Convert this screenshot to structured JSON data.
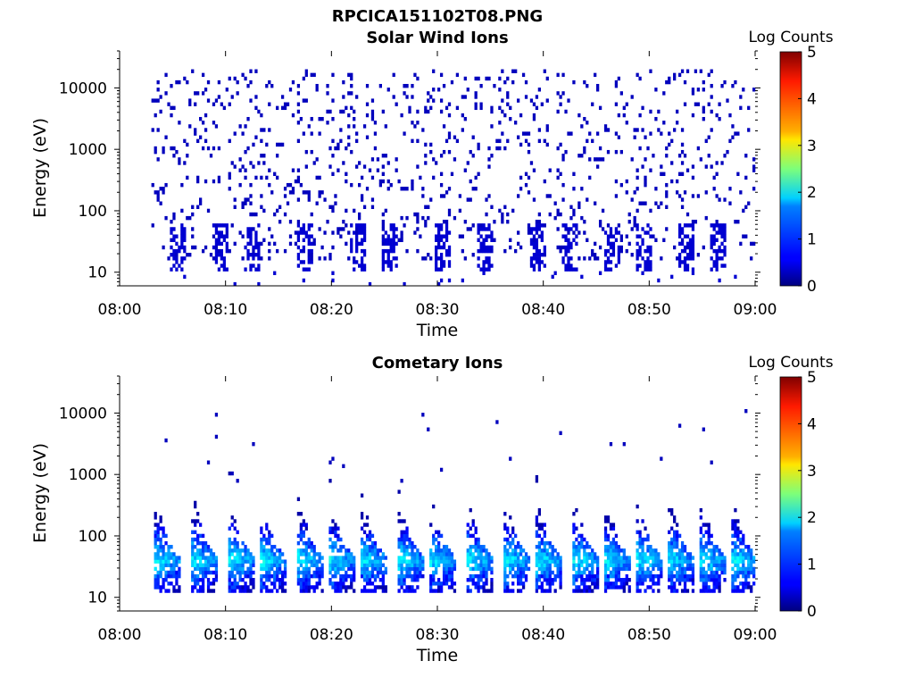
{
  "figure": {
    "filename": "RPCICA151102T08.PNG"
  },
  "colorbar": {
    "label": "Log Counts",
    "ticks": [
      "0",
      "1",
      "2",
      "3",
      "4",
      "5"
    ],
    "range": [
      0,
      5
    ],
    "colormap": "jet"
  },
  "chart_data": [
    {
      "type": "heatmap",
      "title": "Solar Wind Ions",
      "xlabel": "Time",
      "ylabel": "Energy (eV)",
      "xticks": [
        "08:00",
        "08:10",
        "08:20",
        "08:30",
        "08:40",
        "08:50",
        "09:00"
      ],
      "xlim": [
        "08:00",
        "09:00"
      ],
      "yticks": [
        "10",
        "100",
        "1000",
        "10000"
      ],
      "ylim": [
        6,
        40000
      ],
      "yscale": "log",
      "data_start": "08:03",
      "seed": 17,
      "bursts": [
        "08:05",
        "08:09",
        "08:12",
        "08:17",
        "08:22",
        "08:25",
        "08:30",
        "08:34",
        "08:39",
        "08:42",
        "08:46",
        "08:49",
        "08:53",
        "08:56"
      ],
      "background_level": 0.3,
      "burst_energy_eV": [
        10,
        60
      ],
      "burst_level": 0.4
    },
    {
      "type": "heatmap",
      "title": "Cometary Ions",
      "xlabel": "Time",
      "ylabel": "Energy (eV)",
      "xticks": [
        "08:00",
        "08:10",
        "08:20",
        "08:30",
        "08:40",
        "08:50",
        "09:00"
      ],
      "xlim": [
        "08:00",
        "09:00"
      ],
      "yticks": [
        "10",
        "100",
        "1000",
        "10000"
      ],
      "ylim": [
        6,
        40000
      ],
      "yscale": "log",
      "data_start": "08:03",
      "seed": 91,
      "bursts": [
        "08:03.5",
        "08:07",
        "08:10.5",
        "08:13.5",
        "08:17",
        "08:20",
        "08:23",
        "08:26.5",
        "08:29.5",
        "08:33",
        "08:36.5",
        "08:39.5",
        "08:43",
        "08:46",
        "08:49",
        "08:52",
        "08:55",
        "08:58"
      ],
      "peak_energy_eV": 40,
      "peak_level": 1.8,
      "max_level": 2.5
    }
  ]
}
